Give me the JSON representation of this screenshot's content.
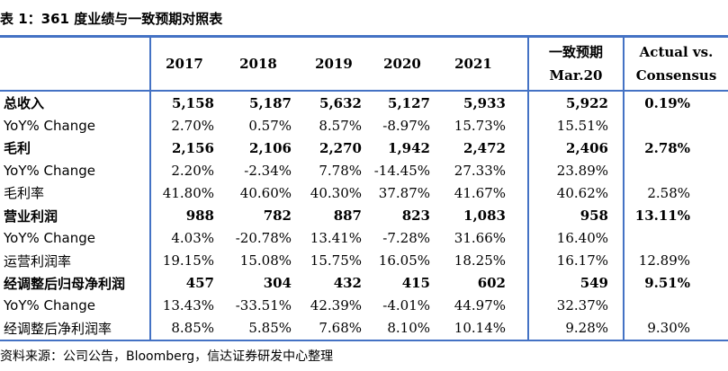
{
  "title": "表 1：361 度业绩与一致预期对照表",
  "headers": {
    "years": [
      "2017",
      "2018",
      "2019",
      "2020",
      "2021"
    ],
    "consensus_line1": "一致预期",
    "consensus_line2": "Mar.20",
    "actual_line1": "Actual vs.",
    "actual_line2": "Consensus"
  },
  "rows": [
    {
      "label": "总收入",
      "values": [
        "5,158",
        "5,187",
        "5,632",
        "5,127",
        "5,933"
      ],
      "consensus": "5,922",
      "actual_vs": "0.19%",
      "bold": true
    },
    {
      "label": "YoY% Change",
      "values": [
        "2.70%",
        "0.57%",
        "8.57%",
        "-8.97%",
        "15.73%"
      ],
      "consensus": "15.51%",
      "actual_vs": "",
      "bold": false
    },
    {
      "label": "毛利",
      "values": [
        "2,156",
        "2,106",
        "2,270",
        "1,942",
        "2,472"
      ],
      "consensus": "2,406",
      "actual_vs": "2.78%",
      "bold": true
    },
    {
      "label": "YoY% Change",
      "values": [
        "2.20%",
        "-2.34%",
        "7.78%",
        "-14.45%",
        "27.33%"
      ],
      "consensus": "23.89%",
      "actual_vs": "",
      "bold": false
    },
    {
      "label": "毛利率",
      "values": [
        "41.80%",
        "40.60%",
        "40.30%",
        "37.87%",
        "41.67%"
      ],
      "consensus": "40.62%",
      "actual_vs": "2.58%",
      "bold": false
    },
    {
      "label": "营业利润",
      "values": [
        "988",
        "782",
        "887",
        "823",
        "1,083"
      ],
      "consensus": "958",
      "actual_vs": "13.11%",
      "bold": true
    },
    {
      "label": "YoY% Change",
      "values": [
        "4.03%",
        "-20.78%",
        "13.41%",
        "-7.28%",
        "31.66%"
      ],
      "consensus": "16.40%",
      "actual_vs": "",
      "bold": false
    },
    {
      "label": "运营利润率",
      "values": [
        "19.15%",
        "15.08%",
        "15.75%",
        "16.05%",
        "18.25%"
      ],
      "consensus": "16.17%",
      "actual_vs": "12.89%",
      "bold": false
    },
    {
      "label": "经调整后归母净利润",
      "values": [
        "457",
        "304",
        "432",
        "415",
        "602"
      ],
      "consensus": "549",
      "actual_vs": "9.51%",
      "bold": true
    },
    {
      "label": "YoY% Change",
      "values": [
        "13.43%",
        "-33.51%",
        "42.39%",
        "-4.01%",
        "44.97%"
      ],
      "consensus": "32.37%",
      "actual_vs": "",
      "bold": false
    },
    {
      "label": "经调整后净利润率",
      "values": [
        "8.85%",
        "5.85%",
        "7.68%",
        "8.10%",
        "10.14%"
      ],
      "consensus": "9.28%",
      "actual_vs": "9.30%",
      "bold": false
    }
  ],
  "source": "资料来源：公司公告，Bloomberg，信达证券研发中心整理",
  "colors": {
    "rule": "#4472c4",
    "text": "#000000"
  }
}
